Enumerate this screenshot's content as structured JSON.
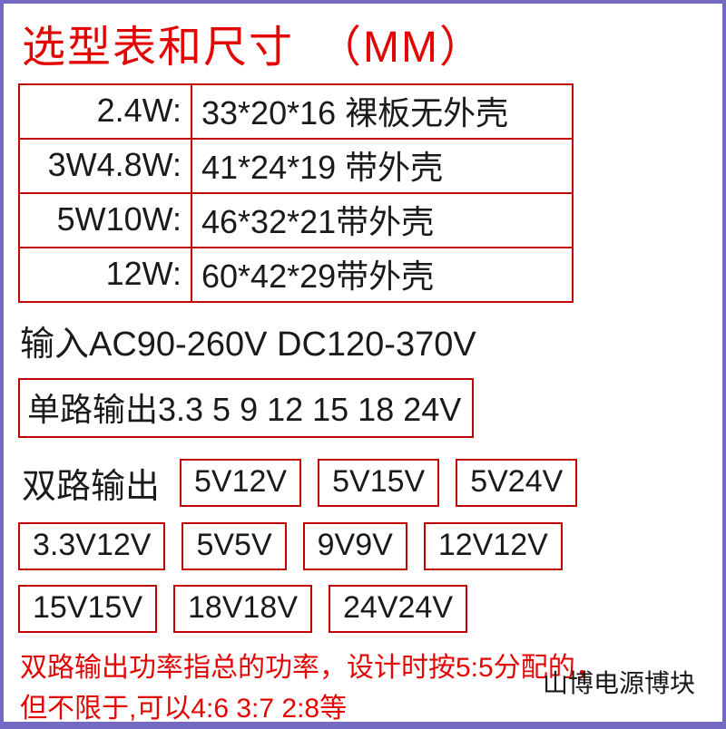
{
  "title": "选型表和尺寸　（MM）",
  "colors": {
    "page_bg": "#746ac2",
    "sheet_bg": "#ffffff",
    "accent_red": "#e30404",
    "border_red": "#c00404",
    "text_black": "#1a1a1a"
  },
  "spec_table": {
    "rows": [
      {
        "watt": "2.4W:",
        "size": "33*20*16 裸板无外壳"
      },
      {
        "watt": "3W4.8W:",
        "size": "41*24*19 带外壳"
      },
      {
        "watt": "5W10W:",
        "size": "46*32*21带外壳"
      },
      {
        "watt": "12W:",
        "size": "60*42*29带外壳"
      }
    ]
  },
  "input_line": "输入AC90-260V DC120-370V",
  "single_output": "单路输出3.3 5 9 12 15 18 24V",
  "dual_output": {
    "label": "双路输出",
    "row1": [
      "5V12V",
      "5V15V",
      "5V24V"
    ],
    "row2": [
      "3.3V12V",
      "5V5V",
      "9V9V",
      "12V12V"
    ],
    "row3": [
      "15V15V",
      "18V18V",
      "24V24V"
    ]
  },
  "note_line1": "双路输出功率指总的功率，设计时按5:5分配的，",
  "note_line2": "但不限于,可以4:6 3:7 2:8等",
  "brand": "山博电源博块"
}
